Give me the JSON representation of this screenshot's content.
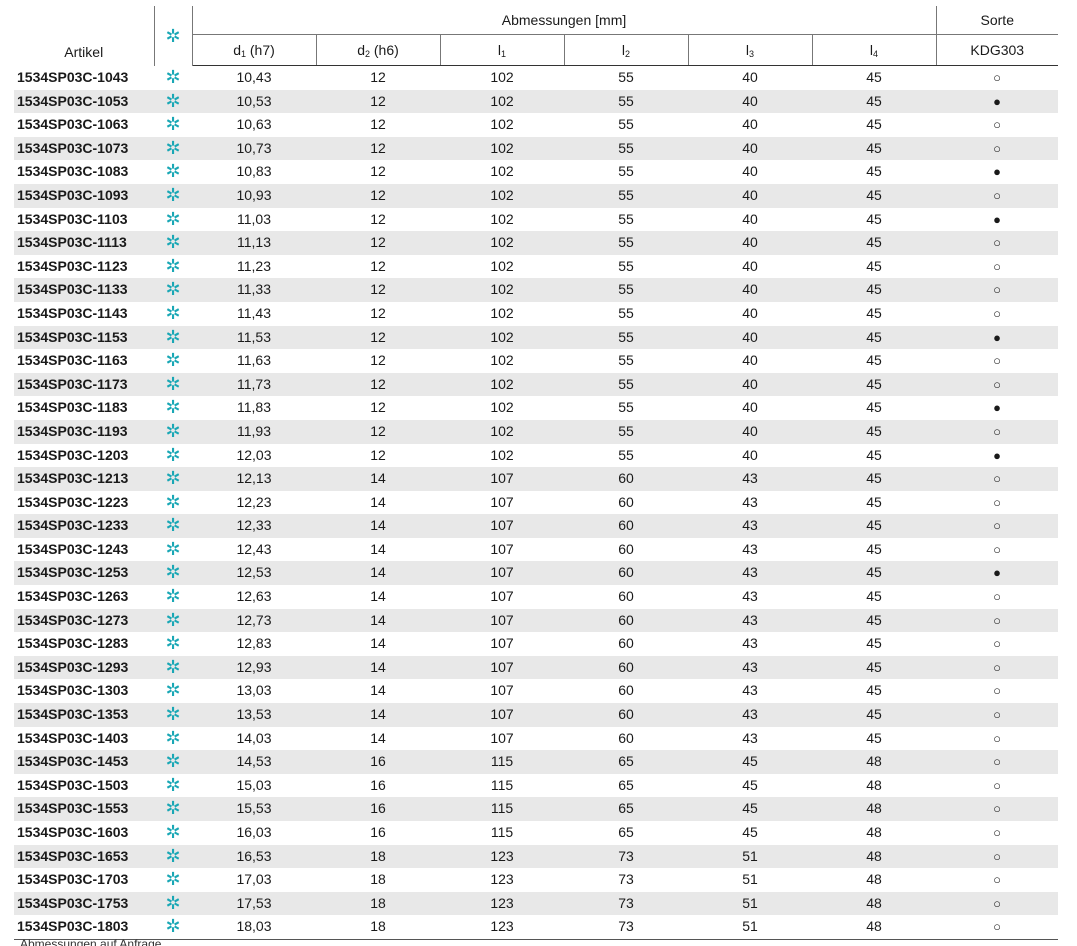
{
  "header": {
    "artikel": "Artikel",
    "group_dims": "Abmessungen [mm]",
    "group_sorte": "Sorte",
    "cols": [
      {
        "base": "d",
        "sub": "1",
        "suffix": " (h7)"
      },
      {
        "base": "d",
        "sub": "2",
        "suffix": " (h6)"
      },
      {
        "base": "l",
        "sub": "1",
        "suffix": ""
      },
      {
        "base": "l",
        "sub": "2",
        "suffix": ""
      },
      {
        "base": "l",
        "sub": "3",
        "suffix": ""
      },
      {
        "base": "l",
        "sub": "4",
        "suffix": ""
      }
    ],
    "grade": "KDG303",
    "star": "✲"
  },
  "symbols": {
    "open": "○",
    "full": "●",
    "star": "✲"
  },
  "rows": [
    {
      "art": "1534SP03C-1043",
      "d1": "10,43",
      "d2": "12",
      "l1": "102",
      "l2": "55",
      "l3": "40",
      "l4": "45",
      "stock": "open"
    },
    {
      "art": "1534SP03C-1053",
      "d1": "10,53",
      "d2": "12",
      "l1": "102",
      "l2": "55",
      "l3": "40",
      "l4": "45",
      "stock": "full"
    },
    {
      "art": "1534SP03C-1063",
      "d1": "10,63",
      "d2": "12",
      "l1": "102",
      "l2": "55",
      "l3": "40",
      "l4": "45",
      "stock": "open"
    },
    {
      "art": "1534SP03C-1073",
      "d1": "10,73",
      "d2": "12",
      "l1": "102",
      "l2": "55",
      "l3": "40",
      "l4": "45",
      "stock": "open"
    },
    {
      "art": "1534SP03C-1083",
      "d1": "10,83",
      "d2": "12",
      "l1": "102",
      "l2": "55",
      "l3": "40",
      "l4": "45",
      "stock": "full"
    },
    {
      "art": "1534SP03C-1093",
      "d1": "10,93",
      "d2": "12",
      "l1": "102",
      "l2": "55",
      "l3": "40",
      "l4": "45",
      "stock": "open"
    },
    {
      "art": "1534SP03C-1103",
      "d1": "11,03",
      "d2": "12",
      "l1": "102",
      "l2": "55",
      "l3": "40",
      "l4": "45",
      "stock": "full"
    },
    {
      "art": "1534SP03C-1113",
      "d1": "11,13",
      "d2": "12",
      "l1": "102",
      "l2": "55",
      "l3": "40",
      "l4": "45",
      "stock": "open"
    },
    {
      "art": "1534SP03C-1123",
      "d1": "11,23",
      "d2": "12",
      "l1": "102",
      "l2": "55",
      "l3": "40",
      "l4": "45",
      "stock": "open"
    },
    {
      "art": "1534SP03C-1133",
      "d1": "11,33",
      "d2": "12",
      "l1": "102",
      "l2": "55",
      "l3": "40",
      "l4": "45",
      "stock": "open"
    },
    {
      "art": "1534SP03C-1143",
      "d1": "11,43",
      "d2": "12",
      "l1": "102",
      "l2": "55",
      "l3": "40",
      "l4": "45",
      "stock": "open"
    },
    {
      "art": "1534SP03C-1153",
      "d1": "11,53",
      "d2": "12",
      "l1": "102",
      "l2": "55",
      "l3": "40",
      "l4": "45",
      "stock": "full"
    },
    {
      "art": "1534SP03C-1163",
      "d1": "11,63",
      "d2": "12",
      "l1": "102",
      "l2": "55",
      "l3": "40",
      "l4": "45",
      "stock": "open"
    },
    {
      "art": "1534SP03C-1173",
      "d1": "11,73",
      "d2": "12",
      "l1": "102",
      "l2": "55",
      "l3": "40",
      "l4": "45",
      "stock": "open"
    },
    {
      "art": "1534SP03C-1183",
      "d1": "11,83",
      "d2": "12",
      "l1": "102",
      "l2": "55",
      "l3": "40",
      "l4": "45",
      "stock": "full"
    },
    {
      "art": "1534SP03C-1193",
      "d1": "11,93",
      "d2": "12",
      "l1": "102",
      "l2": "55",
      "l3": "40",
      "l4": "45",
      "stock": "open"
    },
    {
      "art": "1534SP03C-1203",
      "d1": "12,03",
      "d2": "12",
      "l1": "102",
      "l2": "55",
      "l3": "40",
      "l4": "45",
      "stock": "full"
    },
    {
      "art": "1534SP03C-1213",
      "d1": "12,13",
      "d2": "14",
      "l1": "107",
      "l2": "60",
      "l3": "43",
      "l4": "45",
      "stock": "open"
    },
    {
      "art": "1534SP03C-1223",
      "d1": "12,23",
      "d2": "14",
      "l1": "107",
      "l2": "60",
      "l3": "43",
      "l4": "45",
      "stock": "open"
    },
    {
      "art": "1534SP03C-1233",
      "d1": "12,33",
      "d2": "14",
      "l1": "107",
      "l2": "60",
      "l3": "43",
      "l4": "45",
      "stock": "open"
    },
    {
      "art": "1534SP03C-1243",
      "d1": "12,43",
      "d2": "14",
      "l1": "107",
      "l2": "60",
      "l3": "43",
      "l4": "45",
      "stock": "open"
    },
    {
      "art": "1534SP03C-1253",
      "d1": "12,53",
      "d2": "14",
      "l1": "107",
      "l2": "60",
      "l3": "43",
      "l4": "45",
      "stock": "full"
    },
    {
      "art": "1534SP03C-1263",
      "d1": "12,63",
      "d2": "14",
      "l1": "107",
      "l2": "60",
      "l3": "43",
      "l4": "45",
      "stock": "open"
    },
    {
      "art": "1534SP03C-1273",
      "d1": "12,73",
      "d2": "14",
      "l1": "107",
      "l2": "60",
      "l3": "43",
      "l4": "45",
      "stock": "open"
    },
    {
      "art": "1534SP03C-1283",
      "d1": "12,83",
      "d2": "14",
      "l1": "107",
      "l2": "60",
      "l3": "43",
      "l4": "45",
      "stock": "open"
    },
    {
      "art": "1534SP03C-1293",
      "d1": "12,93",
      "d2": "14",
      "l1": "107",
      "l2": "60",
      "l3": "43",
      "l4": "45",
      "stock": "open"
    },
    {
      "art": "1534SP03C-1303",
      "d1": "13,03",
      "d2": "14",
      "l1": "107",
      "l2": "60",
      "l3": "43",
      "l4": "45",
      "stock": "open"
    },
    {
      "art": "1534SP03C-1353",
      "d1": "13,53",
      "d2": "14",
      "l1": "107",
      "l2": "60",
      "l3": "43",
      "l4": "45",
      "stock": "open"
    },
    {
      "art": "1534SP03C-1403",
      "d1": "14,03",
      "d2": "14",
      "l1": "107",
      "l2": "60",
      "l3": "43",
      "l4": "45",
      "stock": "open"
    },
    {
      "art": "1534SP03C-1453",
      "d1": "14,53",
      "d2": "16",
      "l1": "115",
      "l2": "65",
      "l3": "45",
      "l4": "48",
      "stock": "open"
    },
    {
      "art": "1534SP03C-1503",
      "d1": "15,03",
      "d2": "16",
      "l1": "115",
      "l2": "65",
      "l3": "45",
      "l4": "48",
      "stock": "open"
    },
    {
      "art": "1534SP03C-1553",
      "d1": "15,53",
      "d2": "16",
      "l1": "115",
      "l2": "65",
      "l3": "45",
      "l4": "48",
      "stock": "open"
    },
    {
      "art": "1534SP03C-1603",
      "d1": "16,03",
      "d2": "16",
      "l1": "115",
      "l2": "65",
      "l3": "45",
      "l4": "48",
      "stock": "open"
    },
    {
      "art": "1534SP03C-1653",
      "d1": "16,53",
      "d2": "18",
      "l1": "123",
      "l2": "73",
      "l3": "51",
      "l4": "48",
      "stock": "open"
    },
    {
      "art": "1534SP03C-1703",
      "d1": "17,03",
      "d2": "18",
      "l1": "123",
      "l2": "73",
      "l3": "51",
      "l4": "48",
      "stock": "open"
    },
    {
      "art": "1534SP03C-1753",
      "d1": "17,53",
      "d2": "18",
      "l1": "123",
      "l2": "73",
      "l3": "51",
      "l4": "48",
      "stock": "open"
    },
    {
      "art": "1534SP03C-1803",
      "d1": "18,03",
      "d2": "18",
      "l1": "123",
      "l2": "73",
      "l3": "51",
      "l4": "48",
      "stock": "open"
    }
  ],
  "footnote": "Abmessungen auf Anfrage"
}
